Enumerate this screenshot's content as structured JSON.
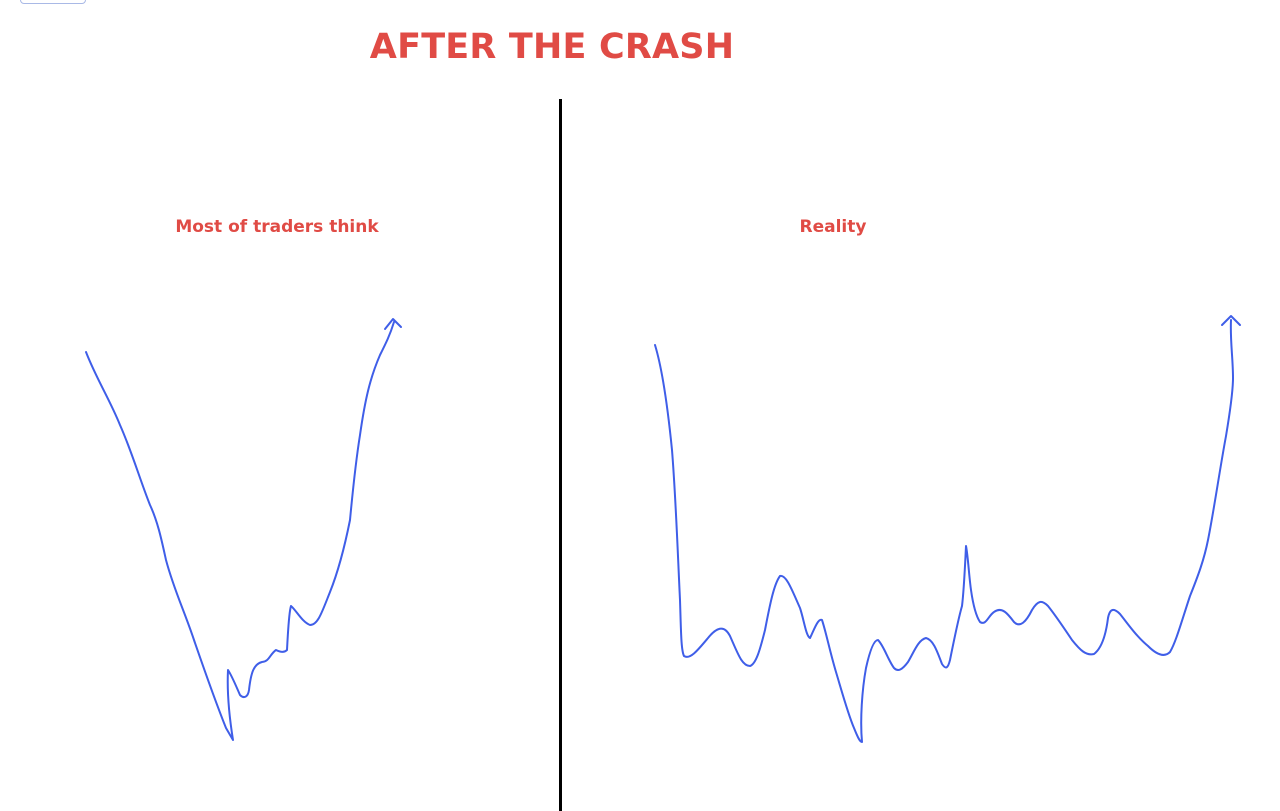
{
  "title": "AFTER THE CRASH",
  "panels": {
    "left": {
      "label": "Most of traders think"
    },
    "right": {
      "label": "Reality"
    }
  },
  "colors": {
    "title": "#e04b45",
    "label": "#e04b45",
    "line": "#3f5ee8",
    "divider": "#000000"
  }
}
